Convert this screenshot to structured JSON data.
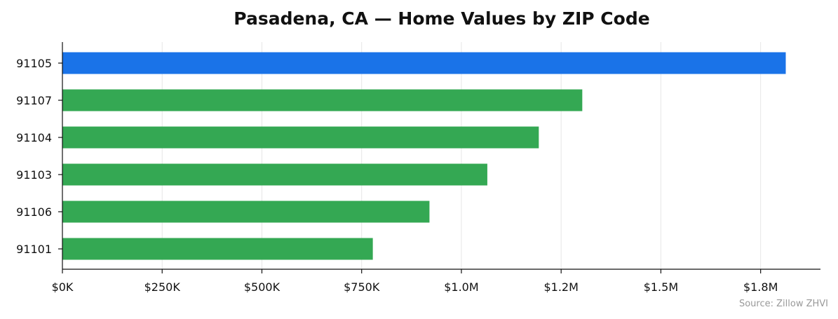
{
  "chart_data": {
    "type": "bar",
    "orientation": "horizontal",
    "title": "Pasadena, CA — Home Values by ZIP Code",
    "xlabel": "",
    "ylabel": "",
    "categories": [
      "91105",
      "91107",
      "91104",
      "91103",
      "91106",
      "91101"
    ],
    "values": [
      1813000,
      1303000,
      1194000,
      1065000,
      920000,
      778000
    ],
    "bar_colors": [
      "#1a73e8",
      "#34a853",
      "#34a853",
      "#34a853",
      "#34a853",
      "#34a853"
    ],
    "xlim": [
      0,
      1900000
    ],
    "x_ticks": [
      0,
      250000,
      500000,
      750000,
      1000000,
      1250000,
      1500000,
      1750000
    ],
    "x_tick_labels": [
      "$0K",
      "$250K",
      "$500K",
      "$750K",
      "$1.0M",
      "$1.2M",
      "$1.5M",
      "$1.8M"
    ],
    "grid": "vertical",
    "source": "Source: Zillow ZHVI"
  }
}
